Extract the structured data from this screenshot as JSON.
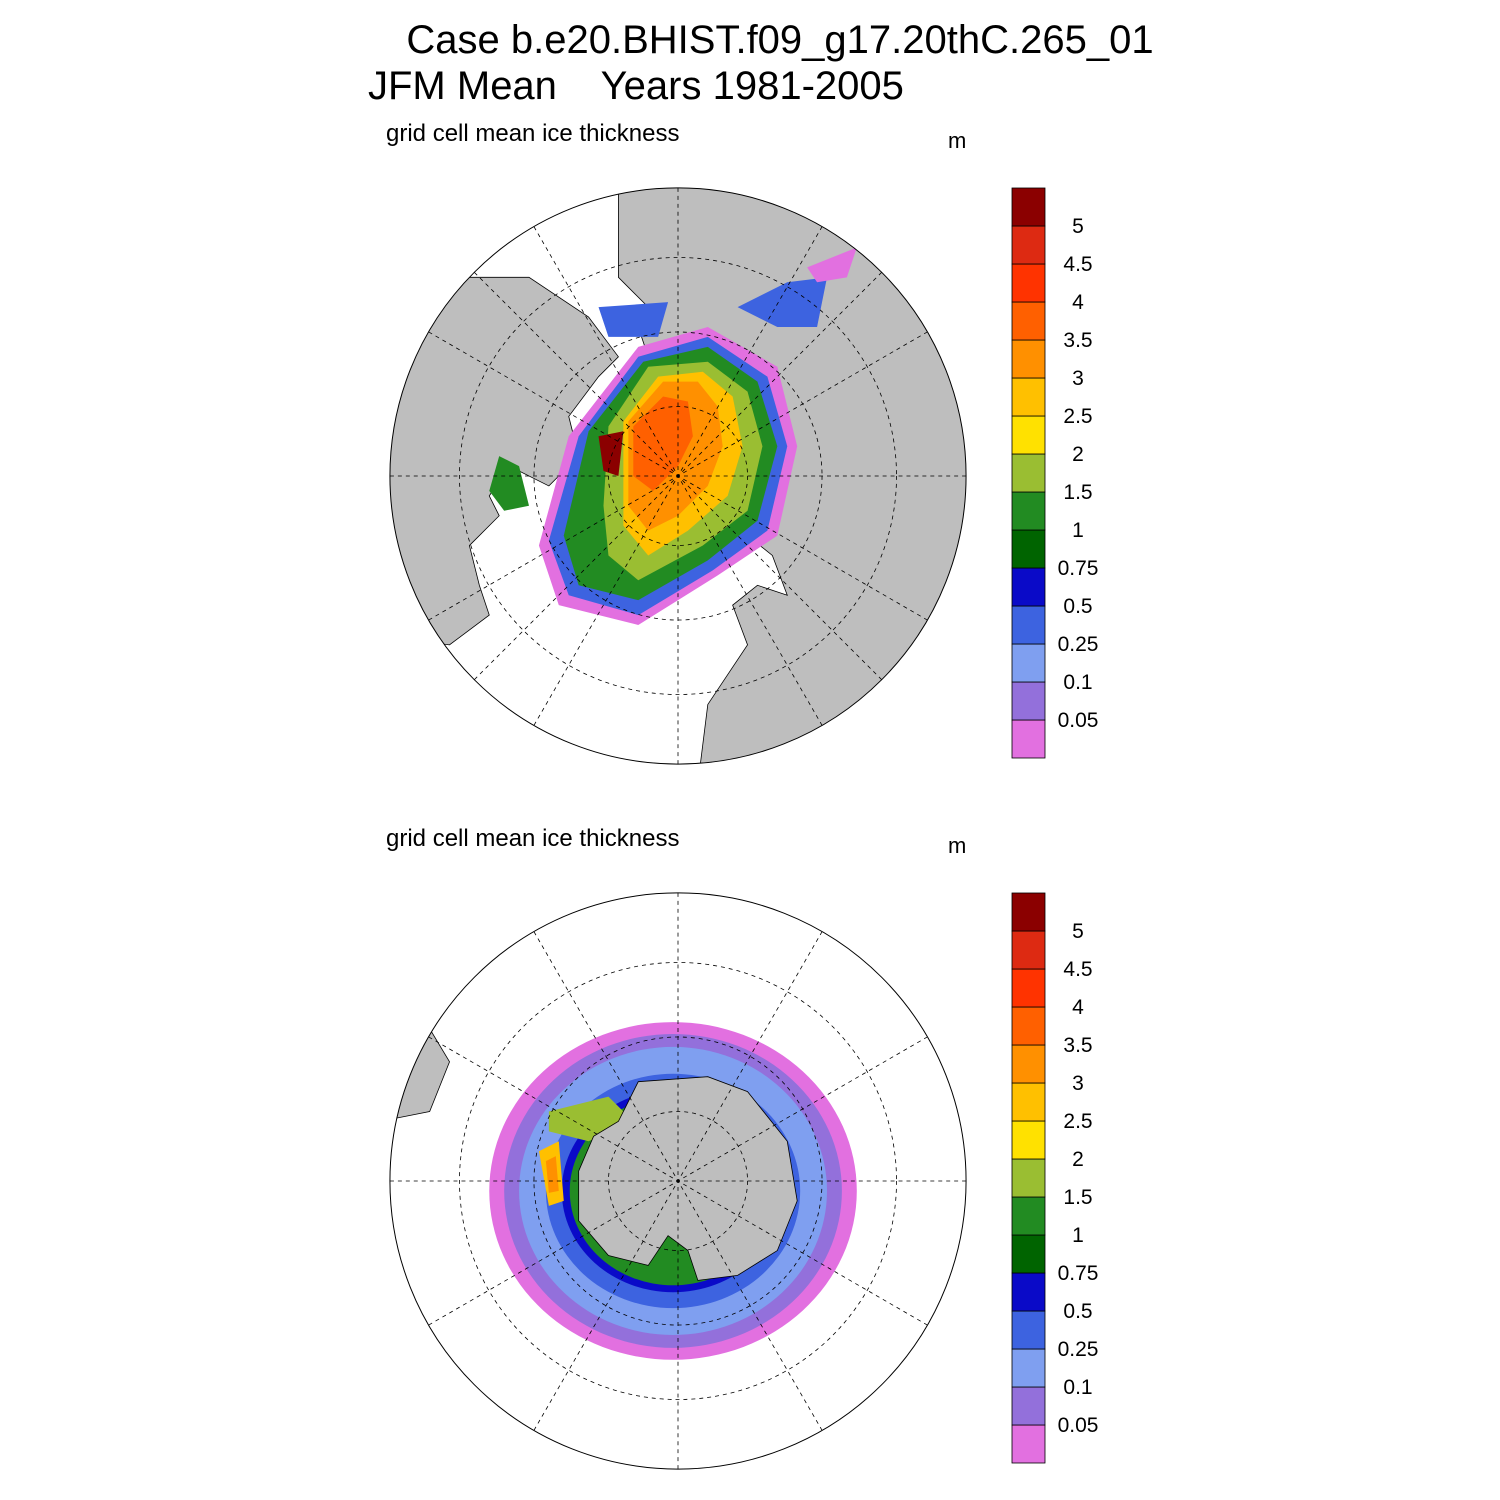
{
  "figure": {
    "title_line1": "Case b.e20.BHIST.f09_g17.20thC.265_01",
    "title_line2": "JFM Mean    Years 1981-2005"
  },
  "panels": [
    {
      "id": "north",
      "hemisphere": "Arctic",
      "subtitle": "grid cell mean ice thickness",
      "units": "m"
    },
    {
      "id": "south",
      "hemisphere": "Antarctic",
      "subtitle": "grid cell mean ice thickness",
      "units": "m"
    }
  ],
  "colorbar": {
    "levels": [
      "0.05",
      "0.1",
      "0.25",
      "0.5",
      "0.75",
      "1",
      "1.5",
      "2",
      "2.5",
      "3",
      "3.5",
      "4",
      "4.5",
      "5"
    ],
    "colors": [
      "#e270e0",
      "#9370db",
      "#7f9ff0",
      "#3d63e0",
      "#0a0ac8",
      "#006400",
      "#228b22",
      "#9abe32",
      "#ffe100",
      "#ffc000",
      "#ff9000",
      "#ff6000",
      "#ff3300",
      "#dd2a12",
      "#8b0000"
    ]
  },
  "map_colors": {
    "land": "#bebebe",
    "ocean": "#ffffff",
    "coast": "#000000"
  }
}
